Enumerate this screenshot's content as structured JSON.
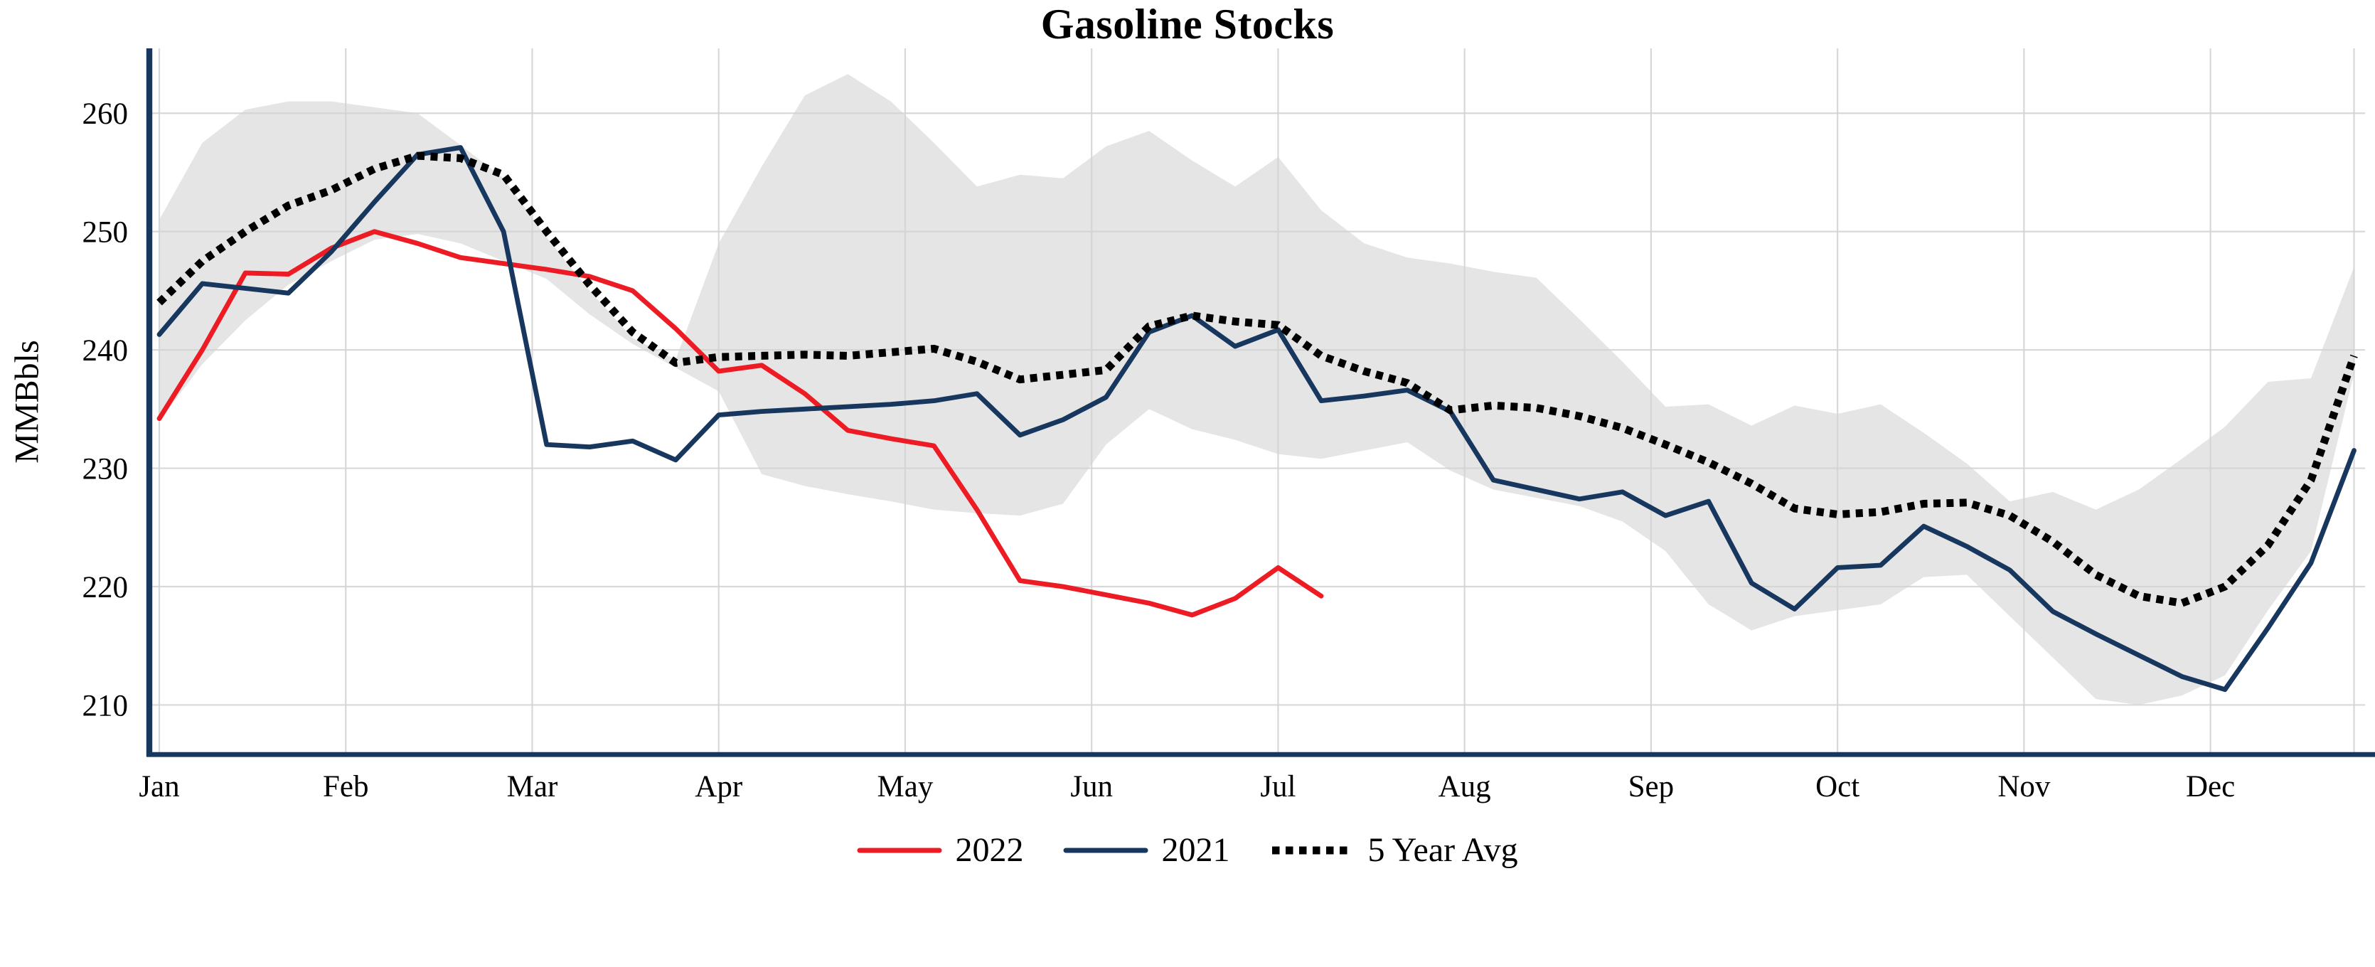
{
  "chart_data": {
    "type": "line",
    "title": "Gasoline Stocks",
    "ylabel": "MMBbls",
    "xlabel": "",
    "x_unit": "week-of-year",
    "months": [
      "Jan",
      "Feb",
      "Mar",
      "Apr",
      "May",
      "Jun",
      "Jul",
      "Aug",
      "Sep",
      "Oct",
      "Nov",
      "Dec"
    ],
    "y_ticks": [
      210,
      220,
      230,
      240,
      250,
      260
    ],
    "ylim": [
      206,
      265
    ],
    "grid": true,
    "legend_position": "bottom-center",
    "axis_color": "#17375e",
    "grid_color": "#d4d4d4",
    "series": [
      {
        "name": "2022",
        "style": "solid",
        "color": "#ed1c24",
        "values": [
          234.2,
          240.0,
          246.5,
          246.4,
          248.6,
          250.0,
          249.0,
          247.8,
          247.3,
          246.8,
          246.2,
          245.0,
          241.8,
          238.2,
          238.7,
          236.3,
          233.2,
          232.5,
          231.9,
          226.5,
          220.5,
          220.0,
          219.3,
          218.6,
          217.6,
          219.0,
          221.6,
          219.2
        ]
      },
      {
        "name": "2021",
        "style": "solid",
        "color": "#17375e",
        "values": [
          241.3,
          245.6,
          245.2,
          244.8,
          248.3,
          252.5,
          256.5,
          257.1,
          250.0,
          232.0,
          231.8,
          232.3,
          230.7,
          234.5,
          234.8,
          235.0,
          235.2,
          235.4,
          235.7,
          236.3,
          232.8,
          234.1,
          236.0,
          241.5,
          242.9,
          240.3,
          241.7,
          235.7,
          236.1,
          236.6,
          234.8,
          229.0,
          228.2,
          227.4,
          228.0,
          226.0,
          227.2,
          220.3,
          218.1,
          221.6,
          221.8,
          225.1,
          223.4,
          221.4,
          217.9,
          216.0,
          214.2,
          212.4,
          211.3,
          216.5,
          222.0,
          231.5
        ]
      },
      {
        "name": "5 Year Avg",
        "style": "dotted",
        "color": "#000000",
        "values": [
          244.0,
          247.5,
          250.0,
          252.2,
          253.5,
          255.3,
          256.4,
          256.2,
          254.8,
          250.0,
          245.5,
          241.5,
          238.9,
          239.4,
          239.5,
          239.6,
          239.5,
          239.8,
          240.1,
          239.0,
          237.5,
          237.9,
          238.3,
          242.0,
          242.9,
          242.4,
          242.1,
          239.5,
          238.2,
          237.2,
          234.9,
          235.3,
          235.1,
          234.4,
          233.4,
          232.0,
          230.5,
          228.7,
          226.6,
          226.1,
          226.3,
          227.0,
          227.1,
          226.0,
          223.8,
          221.0,
          219.2,
          218.6,
          220.0,
          223.5,
          229.0,
          239.5
        ]
      }
    ],
    "band": {
      "name": "5-year range (shaded)",
      "color": "#e5e5e5",
      "upper": [
        251.0,
        257.5,
        260.3,
        261.0,
        261.0,
        260.5,
        260.0,
        257.3,
        254.5,
        249.5,
        245.0,
        241.0,
        239.2,
        249.0,
        255.5,
        261.5,
        263.3,
        261.0,
        257.5,
        253.8,
        254.8,
        254.5,
        257.2,
        258.5,
        256.0,
        253.8,
        256.3,
        251.8,
        249.0,
        247.8,
        247.3,
        246.6,
        246.1,
        242.6,
        239.0,
        235.2,
        235.4,
        233.6,
        235.3,
        234.6,
        235.4,
        233.0,
        230.4,
        227.2,
        228.0,
        226.5,
        228.2,
        230.8,
        233.5,
        237.3,
        237.6,
        247.0
      ],
      "lower": [
        234.0,
        238.8,
        242.5,
        245.5,
        247.5,
        249.3,
        249.8,
        249.0,
        247.5,
        246.0,
        243.0,
        240.5,
        238.5,
        236.5,
        229.5,
        228.5,
        227.8,
        227.2,
        226.5,
        226.2,
        226.0,
        227.0,
        232.0,
        235.0,
        233.3,
        232.4,
        231.2,
        230.8,
        231.5,
        232.2,
        229.8,
        228.2,
        227.5,
        226.8,
        225.5,
        223.0,
        218.5,
        216.3,
        217.5,
        218.0,
        218.5,
        220.8,
        221.0,
        217.5,
        214.0,
        210.5,
        210.0,
        210.8,
        212.5,
        218.0,
        223.0,
        238.0
      ]
    }
  }
}
